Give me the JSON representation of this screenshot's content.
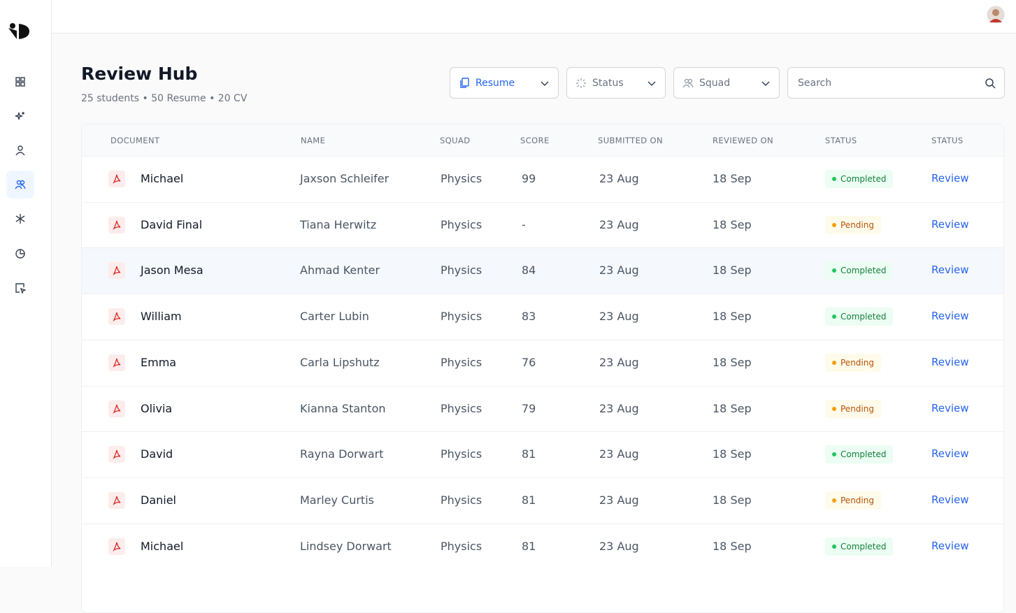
{
  "header": {
    "title": "Review Hub",
    "subtitle": "25 students • 50 Resume • 20 CV"
  },
  "filters": {
    "document": "Resume",
    "status": "Status",
    "squad": "Squad",
    "search": "Search"
  },
  "table": {
    "headers": [
      "DOCUMENT",
      "NAME",
      "SQUAD",
      "SCORE",
      "SUBMITTED ON",
      "REVIEWED ON",
      "STATUS",
      "STATUS"
    ],
    "rows": [
      [
        "Michael",
        "Jaxson Schleifer",
        "Physics",
        "99",
        "23 Aug",
        "18 Sep",
        "Completed",
        "Review"
      ],
      [
        "David Final",
        "Tiana Herwitz",
        "Physics",
        "-",
        "23 Aug",
        "18 Sep",
        "Pending",
        "Review"
      ],
      [
        "Jason Mesa",
        "Ahmad Kenter",
        "Physics",
        "84",
        "23 Aug",
        "18 Sep",
        "Completed",
        "Review"
      ],
      [
        "William",
        "Carter Lubin",
        "Physics",
        "83",
        "23 Aug",
        "18 Sep",
        "Completed",
        "Review"
      ],
      [
        "Emma",
        "Carla Lipshutz",
        "Physics",
        "76",
        "23 Aug",
        "18 Sep",
        "Pending",
        "Review"
      ],
      [
        "Olivia",
        "Kianna Stanton",
        "Physics",
        "79",
        "23 Aug",
        "18 Sep",
        "Pending",
        "Review"
      ],
      [
        "David",
        "Rayna Dorwart",
        "Physics",
        "81",
        "23 Aug",
        "18 Sep",
        "Completed",
        "Review"
      ],
      [
        "Daniel",
        "Marley Curtis",
        "Physics",
        "81",
        "23 Aug",
        "18 Sep",
        "Pending",
        "Review"
      ],
      [
        "Michael",
        "Lindsey Dorwart",
        "Physics",
        "81",
        "23 Aug",
        "18 Sep",
        "Completed",
        "Review"
      ]
    ]
  }
}
